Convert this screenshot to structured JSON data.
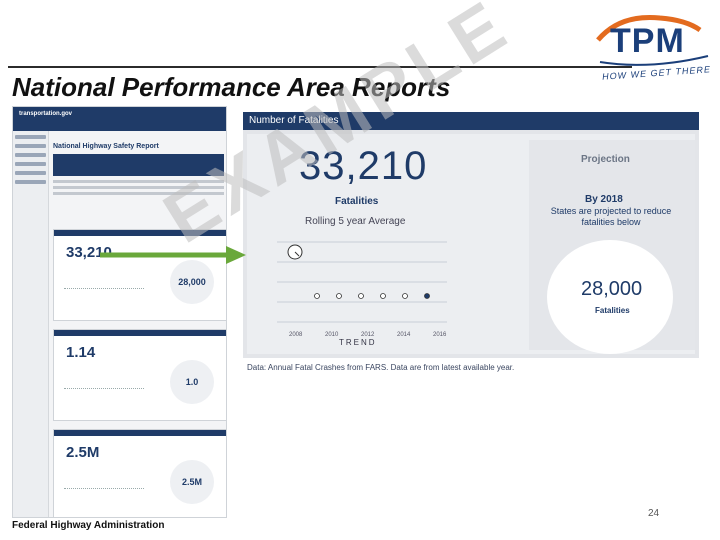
{
  "slide": {
    "title": "National Performance Area Reports",
    "footer_org": "Federal Highway Administration",
    "page_number": "24",
    "watermark": "EXAMPLE"
  },
  "logo": {
    "name": "TPM",
    "tagline": "HOW WE GET THERE"
  },
  "thumbnail": {
    "site_title": "transportation.gov",
    "page_title": "National Highway Safety Report",
    "cards": [
      {
        "value": "33,210",
        "projection": "28,000"
      },
      {
        "value": "1.14",
        "projection": "1.0"
      },
      {
        "value": "2.5M",
        "projection": "2.5M"
      }
    ]
  },
  "panel": {
    "header": "Number of Fatalities",
    "big_number": "33,210",
    "fatalities_label": "Fatalities",
    "rolling_label": "Rolling 5 year Average",
    "trend_label": "TREND",
    "x_ticks": [
      "2008",
      "2010",
      "2012",
      "2014",
      "2016"
    ],
    "projection_title": "Projection",
    "projection_by": "By 2018",
    "projection_desc": "States are projected to reduce fatalities below",
    "projection_value": "28,000",
    "projection_unit": "Fatalities",
    "data_note": "Data: Annual Fatal Crashes from FARS. Data are from latest available year."
  }
}
